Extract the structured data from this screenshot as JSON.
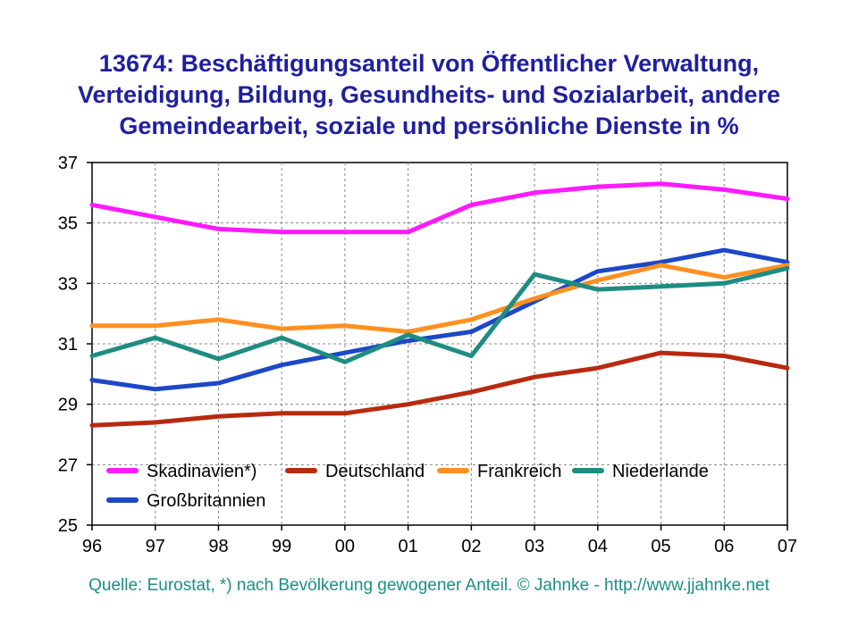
{
  "title_lines": [
    "13674: Beschäftigungsanteil von Öffentlicher Verwaltung,",
    "Verteidigung, Bildung, Gesundheits- und Sozialarbeit, andere",
    "Gemeindearbeit, soziale und persönliche Dienste in %"
  ],
  "source": "Quelle: Eurostat, *) nach Bevölkerung gewogener Anteil. © Jahnke - http://www.jjahnke.net",
  "chart_data": {
    "type": "line",
    "title": "13674: Beschäftigungsanteil von Öffentlicher Verwaltung, Verteidigung, Bildung, Gesundheits- und Sozialarbeit, andere Gemeindearbeit, soziale und persönliche Dienste in %",
    "xlabel": "",
    "ylabel": "",
    "categories": [
      "96",
      "97",
      "98",
      "99",
      "00",
      "01",
      "02",
      "03",
      "04",
      "05",
      "06",
      "07"
    ],
    "ylim": [
      25,
      37
    ],
    "yticks": [
      "37",
      "35",
      "33",
      "31",
      "29",
      "27",
      "25"
    ],
    "grid": true,
    "legend_position": "bottom-left inside plot",
    "series": [
      {
        "name": "Skadinavien*)",
        "color": "#ff1aff",
        "values": [
          35.6,
          35.2,
          34.8,
          34.7,
          34.7,
          34.7,
          35.6,
          36.0,
          36.2,
          36.3,
          36.1,
          35.8
        ]
      },
      {
        "name": "Deutschland",
        "color": "#b82a10",
        "values": [
          28.3,
          28.4,
          28.6,
          28.7,
          28.7,
          29.0,
          29.4,
          29.9,
          30.2,
          30.7,
          30.6,
          30.2
        ]
      },
      {
        "name": "Frankreich",
        "color": "#ff9020",
        "values": [
          31.6,
          31.6,
          31.8,
          31.5,
          31.6,
          31.4,
          31.8,
          32.5,
          33.1,
          33.6,
          33.2,
          33.6
        ]
      },
      {
        "name": "Niederlande",
        "color": "#1f8c82",
        "values": [
          30.6,
          31.2,
          30.5,
          31.2,
          30.4,
          31.3,
          30.6,
          33.3,
          32.8,
          32.9,
          33.0,
          33.5
        ]
      },
      {
        "name": "Großbritannien",
        "color": "#1c48c8",
        "values": [
          29.8,
          29.5,
          29.7,
          30.3,
          30.7,
          31.1,
          31.4,
          32.4,
          33.4,
          33.7,
          34.1,
          33.7
        ]
      }
    ]
  }
}
